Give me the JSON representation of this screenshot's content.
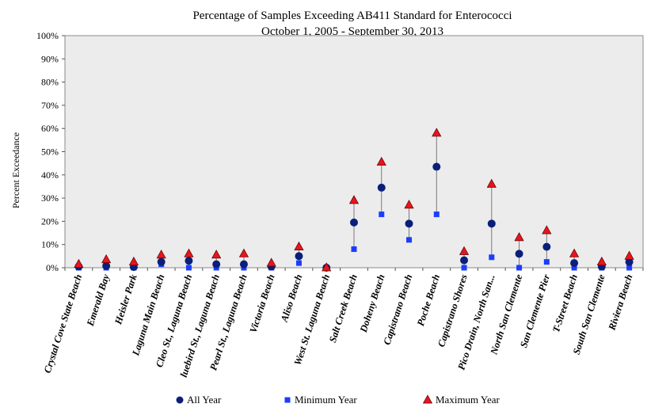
{
  "chart_data": {
    "type": "scatter",
    "title": "Percentage of Samples Exceeding AB411 Standard for Enterococci",
    "subtitle": "October 1, 2005 - September 30, 2013",
    "xlabel": "",
    "ylabel": "Percent Exceedance",
    "ylim": [
      0,
      100
    ],
    "yticks": [
      "0%",
      "10%",
      "20%",
      "30%",
      "40%",
      "50%",
      "60%",
      "70%",
      "80%",
      "90%",
      "100%"
    ],
    "grid": false,
    "legend_position": "bottom",
    "categories": [
      "Crystal Cove State Beach",
      "Emerald Bay",
      "Heisler Park",
      "Laguna Main Beach",
      "Cleo St., Laguna Beach",
      "luebird St., Laguna Beach",
      "Pearl St., Laguna Beach",
      "Victoria Beach",
      "Aliso Beach",
      "West St. Laguna Beach",
      "Salt Creek Beach",
      "Doheny Beach",
      "Capistrano Beach",
      "Poche Beach",
      "Capistrano Shores",
      "Pico Drain, North San...",
      "North San Clemente",
      "San Clemente Pier",
      "T-Street Beach",
      "South San Clemente",
      "Riviera Beach"
    ],
    "series": [
      {
        "name": "All Year",
        "marker": "circle",
        "color": "#0a1f7a",
        "values": [
          0.5,
          0.8,
          0.3,
          2.5,
          3,
          1.5,
          1.5,
          0.5,
          5,
          0,
          19.5,
          34.5,
          19,
          43.5,
          3.2,
          19,
          6,
          9,
          2,
          0.5,
          2.5
        ]
      },
      {
        "name": "Minimum Year",
        "marker": "square",
        "color": "#1a3cff",
        "values": [
          0,
          0,
          0,
          1.5,
          0,
          0,
          0,
          0,
          2,
          0,
          8,
          23,
          12,
          23,
          0,
          4.5,
          0,
          2.5,
          0,
          0,
          0
        ]
      },
      {
        "name": "Maximum Year",
        "marker": "triangle",
        "color": "#e8141e",
        "values": [
          1.5,
          3.5,
          2.5,
          5.5,
          6,
          5.5,
          6,
          2,
          9,
          0,
          29,
          45.5,
          27,
          58,
          7,
          36,
          13,
          16,
          6,
          2.5,
          5
        ]
      }
    ]
  }
}
